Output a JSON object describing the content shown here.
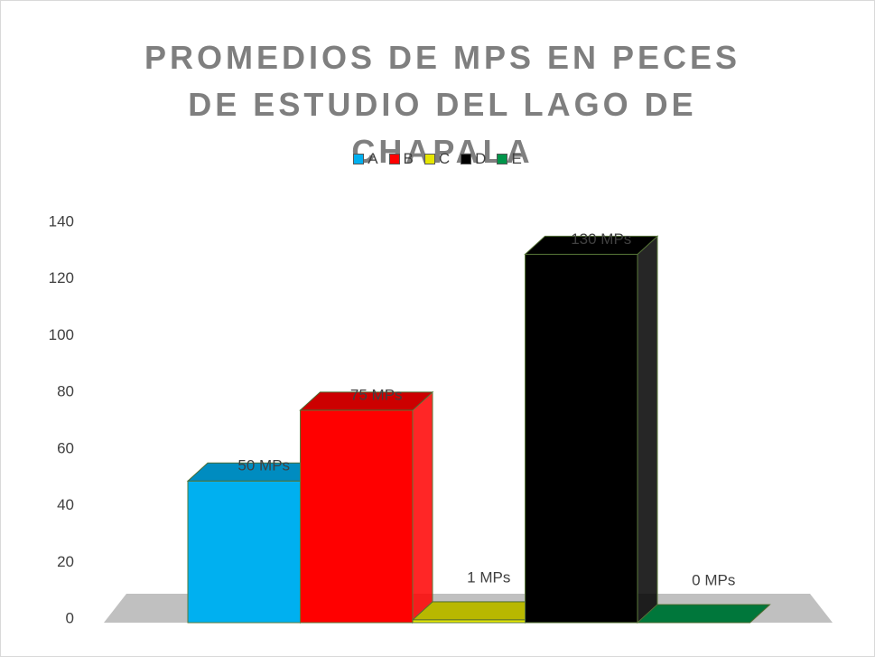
{
  "chart_data": {
    "type": "bar",
    "title": "PROMEDIOS DE MPS EN PECES DE ESTUDIO DEL LAGO DE CHAPALA",
    "categories": [
      null
    ],
    "series": [
      {
        "name": "A",
        "color": "#00b0f0",
        "values": [
          50
        ],
        "value_labels": [
          "50 MPs"
        ]
      },
      {
        "name": "B",
        "color": "#ff0000",
        "values": [
          75
        ],
        "value_labels": [
          "75 MPs"
        ]
      },
      {
        "name": "C",
        "color": "#e6e600",
        "values": [
          1
        ],
        "value_labels": [
          "1 MPs"
        ]
      },
      {
        "name": "D",
        "color": "#000000",
        "values": [
          130
        ],
        "value_labels": [
          "130 MPs"
        ]
      },
      {
        "name": "E",
        "color": "#00954a",
        "values": [
          0
        ],
        "value_labels": [
          "0 MPs"
        ]
      }
    ],
    "ylim": [
      0,
      140
    ],
    "yticks": [
      0,
      20,
      40,
      60,
      80,
      100,
      120,
      140
    ],
    "grid": false,
    "legend": "top"
  }
}
